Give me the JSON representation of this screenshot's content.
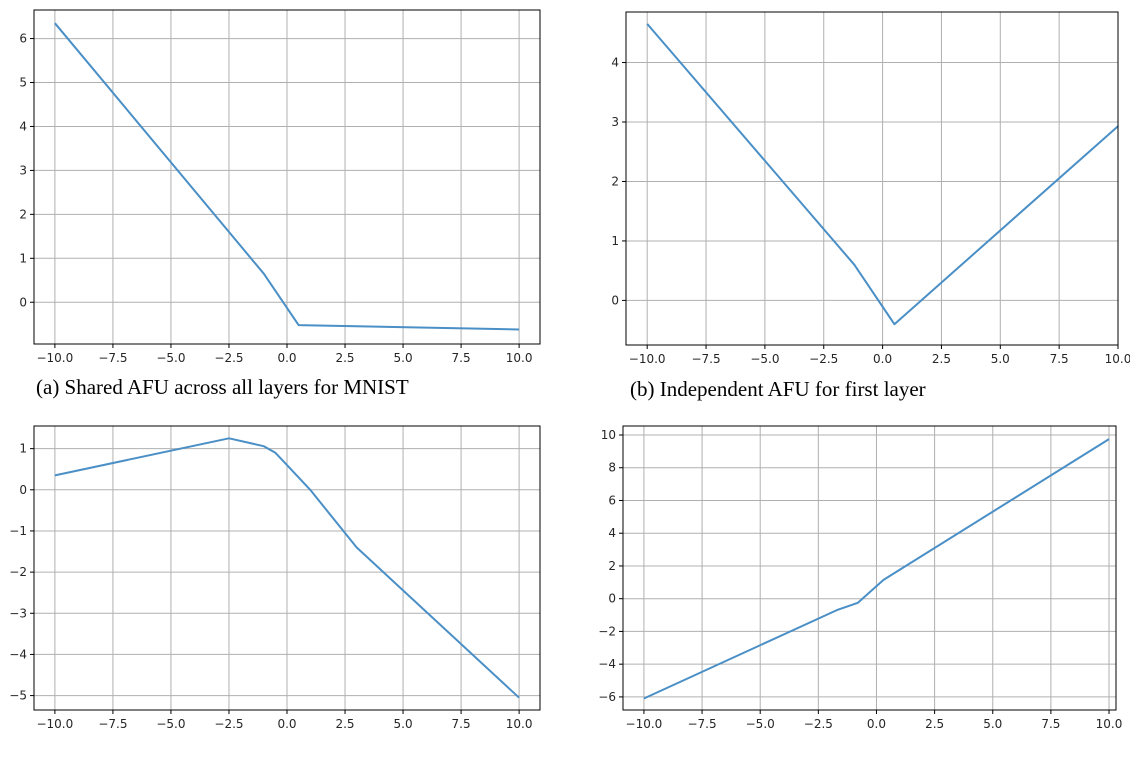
{
  "captions": {
    "a": "(a)  Shared AFU across all layers for MNIST",
    "b": "(b)  Independent AFU for first layer"
  },
  "colors": {
    "line": "#4a8fc6",
    "grid": "#b0b0b0",
    "axis": "#000000"
  },
  "chart_data": [
    {
      "type": "line",
      "grid": true,
      "xlim": [
        -10.9,
        10.9
      ],
      "ylim": [
        -0.95,
        6.65
      ],
      "xticks": [
        "-10.0",
        "-7.5",
        "-5.0",
        "-2.5",
        "0.0",
        "2.5",
        "5.0",
        "7.5",
        "10.0"
      ],
      "yticks": [
        "0",
        "1",
        "2",
        "3",
        "4",
        "5",
        "6"
      ],
      "series": [
        {
          "x": [
            -10,
            -1,
            0.5,
            10
          ],
          "y": [
            6.35,
            0.65,
            -0.52,
            -0.62
          ]
        }
      ]
    },
    {
      "type": "line",
      "grid": true,
      "xlim": [
        -10.9,
        10.0
      ],
      "ylim": [
        -0.75,
        4.85
      ],
      "xticks": [
        "-10.0",
        "-7.5",
        "-5.0",
        "-2.5",
        "0.0",
        "2.5",
        "5.0",
        "7.5",
        "10.0"
      ],
      "yticks": [
        "0",
        "1",
        "2",
        "3",
        "4"
      ],
      "series": [
        {
          "x": [
            -10,
            -1.2,
            0.5,
            10
          ],
          "y": [
            4.65,
            0.6,
            -0.4,
            2.93
          ]
        }
      ]
    },
    {
      "type": "line",
      "grid": true,
      "xlim": [
        -10.9,
        10.9
      ],
      "ylim": [
        -5.35,
        1.55
      ],
      "xticks": [
        "-10.0",
        "-7.5",
        "-5.0",
        "-2.5",
        "0.0",
        "2.5",
        "5.0",
        "7.5",
        "10.0"
      ],
      "yticks": [
        "1",
        "0",
        "-1",
        "-2",
        "-3",
        "-4",
        "-5"
      ],
      "series": [
        {
          "x": [
            -10,
            -2.5,
            -1,
            -0.5,
            0,
            1,
            3,
            10
          ],
          "y": [
            0.35,
            1.25,
            1.06,
            0.9,
            0.6,
            0.0,
            -1.4,
            -5.05
          ]
        }
      ]
    },
    {
      "type": "line",
      "grid": true,
      "xlim": [
        -10.9,
        10.3
      ],
      "ylim": [
        -6.8,
        10.55
      ],
      "xticks": [
        "-10.0",
        "-7.5",
        "-5.0",
        "-2.5",
        "0.0",
        "2.5",
        "5.0",
        "7.5",
        "10.0"
      ],
      "yticks": [
        "10",
        "8",
        "6",
        "4",
        "2",
        "0",
        "-2",
        "-4",
        "-6"
      ],
      "series": [
        {
          "x": [
            -10,
            -1.7,
            -0.8,
            0.3,
            10
          ],
          "y": [
            -6.1,
            -0.7,
            -0.25,
            1.15,
            9.75
          ]
        }
      ]
    }
  ]
}
